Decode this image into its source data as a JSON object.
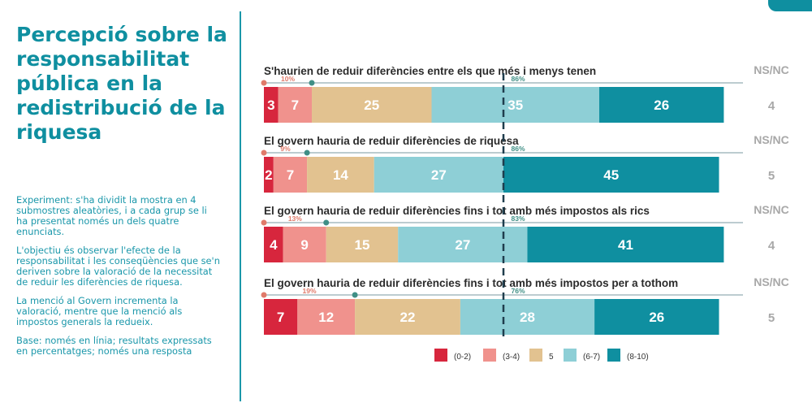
{
  "panel": {
    "title": "Percepció sobre la responsabilitat pública en la redistribució de la riquesa",
    "notes": [
      "Experiment: s'ha dividit la mostra en 4 submostres aleatòries, i a cada grup se li ha presentat només un dels quatre enunciats.",
      "L'objectiu és observar l'efecte de la responsabilitat i les conseqüències que se'n deriven sobre la valoració de la necessitat de reduir les diferències de riquesa.",
      "La menció al Govern incrementa la valoració, mentre que la menció als impostos generals la redueix.",
      "Base: només en línia; resultats expressats en percentatges; només una resposta"
    ]
  },
  "colors": {
    "accent": "#0f8fa0",
    "dashed_line": "#1f3d4d",
    "nsnc": "#a8a8a8"
  },
  "chart_data": {
    "type": "bar",
    "orientation": "horizontal",
    "stacked": true,
    "xlim": [
      0,
      100
    ],
    "nsnc_header": "NS/NC",
    "reference_line_label": "",
    "categories": [
      "S'haurien de reduir diferències entre els que més i menys tenen",
      "El govern hauria de reduir diferències de riquesa",
      "El govern hauria de reduir diferències fins i tot amb més impostos als rics",
      "El govern hauria de reduir diferències fins i tot amb més impostos per a tothom"
    ],
    "series": [
      {
        "name": "(0-2)",
        "color": "#d7263d",
        "values": [
          3,
          2,
          4,
          7
        ]
      },
      {
        "name": "(3-4)",
        "color": "#f0928d",
        "values": [
          7,
          7,
          9,
          12
        ]
      },
      {
        "name": "5",
        "color": "#e2c290",
        "values": [
          25,
          14,
          15,
          22
        ]
      },
      {
        "name": "(6-7)",
        "color": "#8ecfd6",
        "values": [
          35,
          27,
          27,
          28
        ]
      },
      {
        "name": "(8-10)",
        "color": "#0f8fa0",
        "values": [
          26,
          45,
          41,
          26
        ]
      }
    ],
    "nsnc": [
      4,
      5,
      4,
      5
    ],
    "low_labels": [
      "10%",
      "9%",
      "13%",
      "19%"
    ],
    "high_labels": [
      "86%",
      "86%",
      "83%",
      "76%"
    ],
    "reference_line_at": 50,
    "legend_position": "bottom"
  }
}
